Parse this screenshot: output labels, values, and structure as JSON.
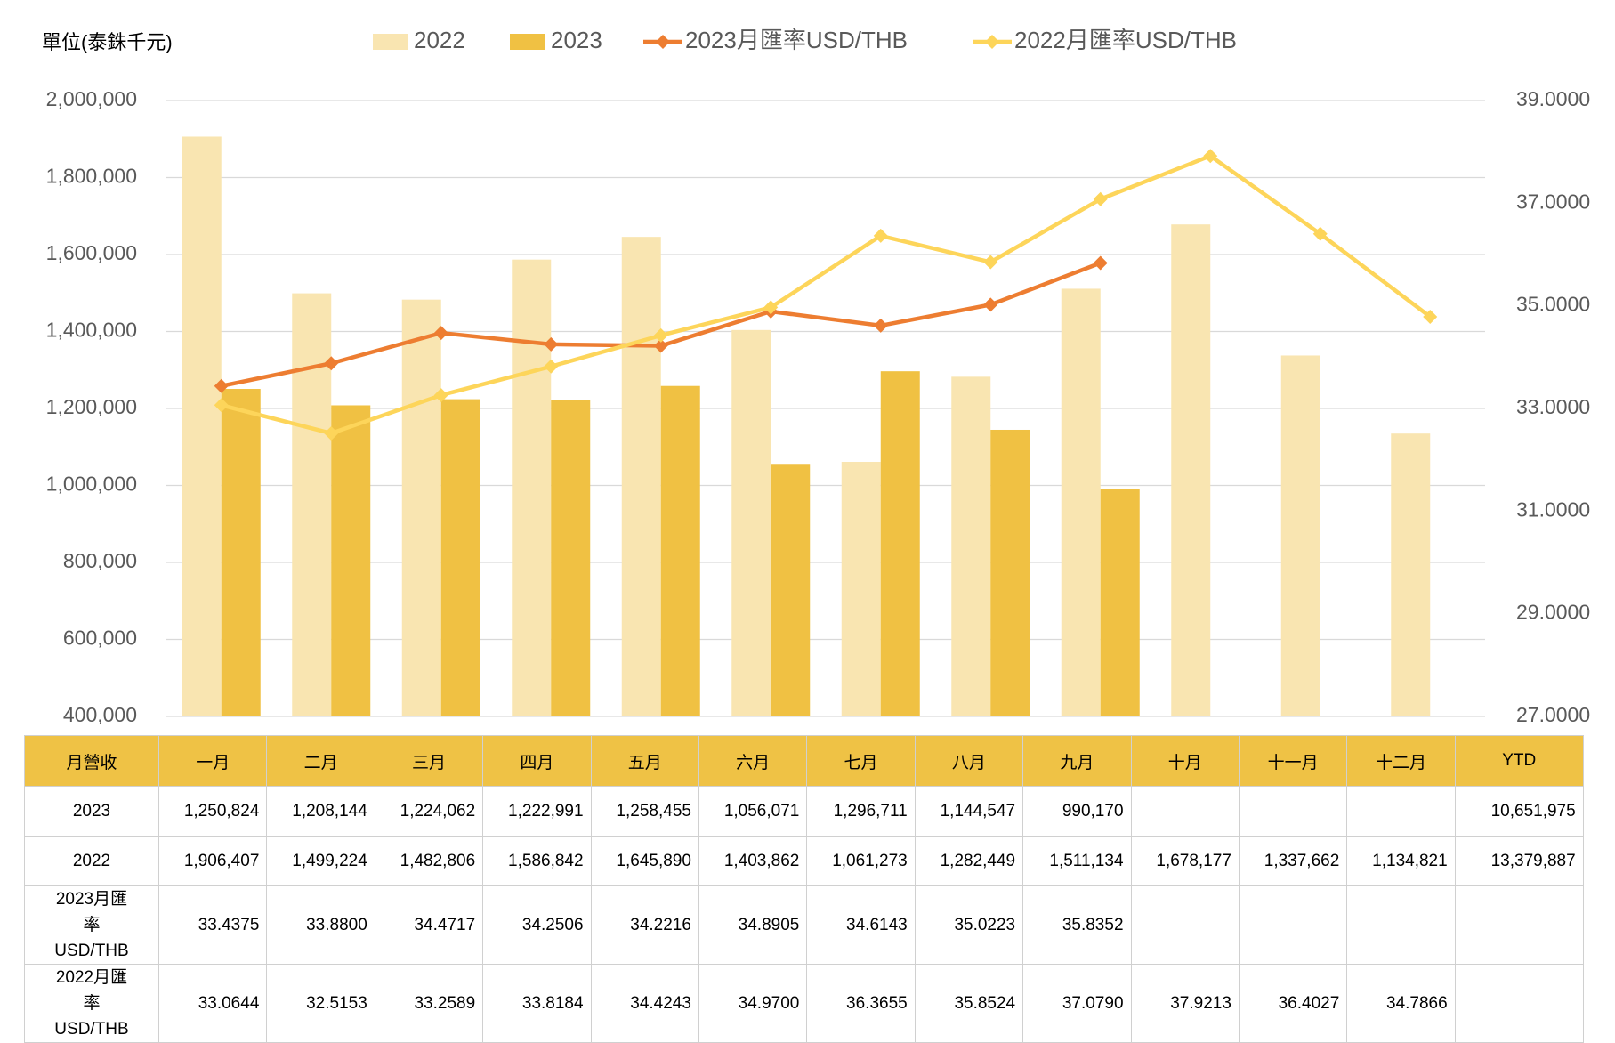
{
  "chart_data": {
    "type": "bar",
    "unit_label": "單位(泰銖千元)",
    "categories": [
      "一月",
      "二月",
      "三月",
      "四月",
      "五月",
      "六月",
      "七月",
      "八月",
      "九月",
      "十月",
      "十一月",
      "十二月"
    ],
    "series": [
      {
        "name": "2022",
        "type": "bar",
        "color": "#f9e5b1",
        "values": [
          1906407,
          1499224,
          1482806,
          1586842,
          1645890,
          1403862,
          1061273,
          1282449,
          1511134,
          1678177,
          1337662,
          1134821
        ],
        "value_labels": [
          "1,906,407",
          "1,499,224",
          "1,482,806",
          "1,586,842",
          "1,645,890",
          "1,403,862",
          "1,061,273",
          "1,282,449",
          "1,511,134",
          "1,678,177",
          "1,337,662",
          "1,134,821"
        ],
        "ytd": "13,379,887"
      },
      {
        "name": "2023",
        "type": "bar",
        "color": "#f0c143",
        "values": [
          1250824,
          1208144,
          1224062,
          1222991,
          1258455,
          1056071,
          1296711,
          1144547,
          990170,
          null,
          null,
          null
        ],
        "value_labels": [
          "1,250,824",
          "1,208,144",
          "1,224,062",
          "1,222,991",
          "1,258,455",
          "1,056,071",
          "1,296,711",
          "1,144,547",
          "990,170",
          null,
          null,
          null
        ],
        "ytd": "10,651,975"
      },
      {
        "name": "2023月匯率USD/THB",
        "type": "line",
        "axis": "y2",
        "color": "#ed7d31",
        "values": [
          33.4375,
          33.88,
          34.4717,
          34.2506,
          34.2216,
          34.8905,
          34.6143,
          35.0223,
          35.8352,
          null,
          null,
          null
        ],
        "value_labels": [
          "33.4375",
          "33.8800",
          "34.4717",
          "34.2506",
          "34.2216",
          "34.8905",
          "34.6143",
          "35.0223",
          "35.8352",
          null,
          null,
          null
        ]
      },
      {
        "name": "2022月匯率USD/THB",
        "type": "line",
        "axis": "y2",
        "color": "#fdd55a",
        "values": [
          33.0644,
          32.5153,
          33.2589,
          33.8184,
          34.4243,
          34.97,
          36.3655,
          35.8524,
          37.079,
          37.9213,
          36.4027,
          34.7866
        ],
        "value_labels": [
          "33.0644",
          "32.5153",
          "33.2589",
          "33.8184",
          "34.4243",
          "34.9700",
          "36.3655",
          "35.8524",
          "37.0790",
          "37.9213",
          "36.4027",
          "34.7866"
        ]
      }
    ],
    "ylim": [
      400000,
      2000000
    ],
    "yticks": [
      {
        "value": 400000,
        "label": "400,000"
      },
      {
        "value": 600000,
        "label": "600,000"
      },
      {
        "value": 800000,
        "label": "800,000"
      },
      {
        "value": 1000000,
        "label": "1,000,000"
      },
      {
        "value": 1200000,
        "label": "1,200,000"
      },
      {
        "value": 1400000,
        "label": "1,400,000"
      },
      {
        "value": 1600000,
        "label": "1,600,000"
      },
      {
        "value": 1800000,
        "label": "1,800,000"
      },
      {
        "value": 2000000,
        "label": "2,000,000"
      }
    ],
    "y2lim": [
      27,
      39
    ],
    "y2ticks": [
      {
        "value": 27,
        "label": "27.0000"
      },
      {
        "value": 29,
        "label": "29.0000"
      },
      {
        "value": 31,
        "label": "31.0000"
      },
      {
        "value": 33,
        "label": "33.0000"
      },
      {
        "value": 35,
        "label": "35.0000"
      },
      {
        "value": 37,
        "label": "37.0000"
      },
      {
        "value": 39,
        "label": "39.0000"
      }
    ],
    "grid": true,
    "legend": "top",
    "table": {
      "corner": "月營收",
      "ytd_header": "YTD",
      "header_color": "#efc245"
    }
  }
}
